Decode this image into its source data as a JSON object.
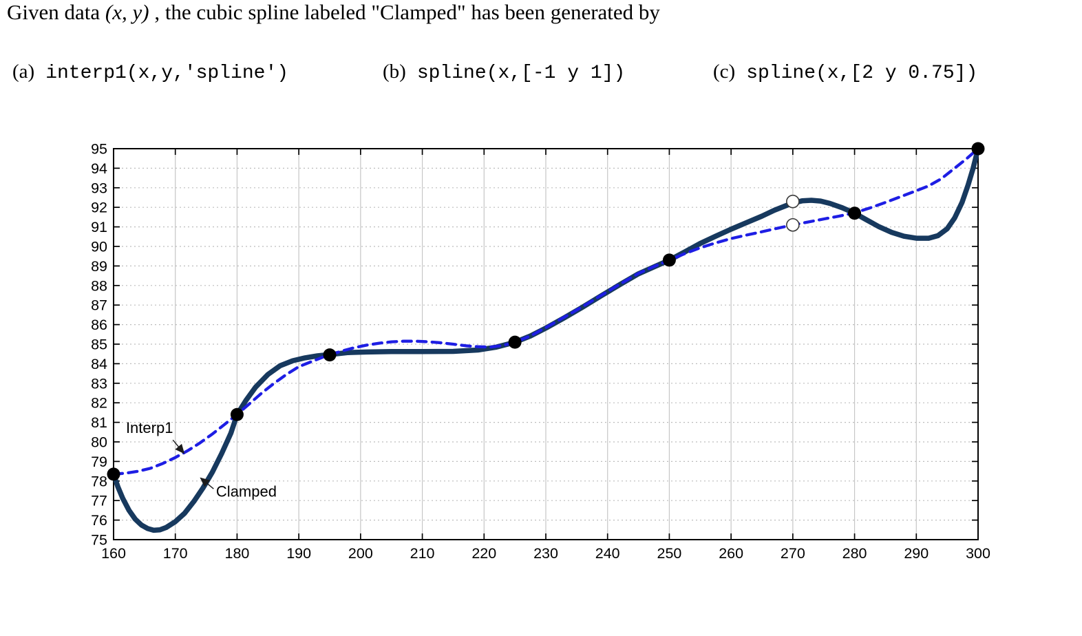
{
  "question": {
    "prefix": "Given data ",
    "math": "(x, y)",
    "suffix": " , the cubic spline labeled \"Clamped\" has been generated by"
  },
  "options": [
    {
      "label": "(a)",
      "code": "interp1(x,y,'spline')"
    },
    {
      "label": "(b)",
      "code": "spline(x,[-1 y 1])"
    },
    {
      "label": "(c)",
      "code": "spline(x,[2 y 0.75])"
    }
  ],
  "chart_data": {
    "type": "line",
    "title": "",
    "xlabel": "",
    "ylabel": "",
    "xlim": [
      160,
      300
    ],
    "ylim": [
      75,
      95
    ],
    "xticks": [
      160,
      170,
      180,
      190,
      200,
      210,
      220,
      230,
      240,
      250,
      260,
      270,
      280,
      290,
      300
    ],
    "yticks": [
      75,
      76,
      77,
      78,
      79,
      80,
      81,
      82,
      83,
      84,
      85,
      86,
      87,
      88,
      89,
      90,
      91,
      92,
      93,
      94,
      95
    ],
    "grid": true,
    "legend_position": "inline-annotations",
    "knots": {
      "x": [
        160,
        180,
        195,
        225,
        250,
        280,
        300
      ],
      "y": [
        78.35,
        81.4,
        84.45,
        85.1,
        89.3,
        91.7,
        95.0
      ],
      "marker_color": "#000000",
      "marker_radius": 9.5
    },
    "open_markers": {
      "points": [
        [
          270,
          92.3
        ],
        [
          270,
          91.1
        ]
      ],
      "fill": "#ffffff",
      "stroke": "#3a3a3a",
      "radius": 9
    },
    "series": [
      {
        "name": "Clamped",
        "style": "solid",
        "color": "#17395e",
        "width": 7.5,
        "points": [
          [
            160,
            78.35
          ],
          [
            160.7,
            77.7
          ],
          [
            161.5,
            77.1
          ],
          [
            162.5,
            76.5
          ],
          [
            163.5,
            76.05
          ],
          [
            164.5,
            75.75
          ],
          [
            165.5,
            75.57
          ],
          [
            166.5,
            75.48
          ],
          [
            167.5,
            75.5
          ],
          [
            168.5,
            75.62
          ],
          [
            170,
            75.92
          ],
          [
            171.5,
            76.35
          ],
          [
            173,
            76.95
          ],
          [
            174.5,
            77.65
          ],
          [
            176,
            78.45
          ],
          [
            177.5,
            79.4
          ],
          [
            179,
            80.45
          ],
          [
            180,
            81.4
          ],
          [
            181.5,
            82.15
          ],
          [
            183,
            82.8
          ],
          [
            185,
            83.45
          ],
          [
            187,
            83.9
          ],
          [
            189,
            84.15
          ],
          [
            191,
            84.3
          ],
          [
            193,
            84.4
          ],
          [
            195,
            84.47
          ],
          [
            198,
            84.57
          ],
          [
            201,
            84.6
          ],
          [
            205,
            84.62
          ],
          [
            210,
            84.62
          ],
          [
            215,
            84.63
          ],
          [
            219,
            84.7
          ],
          [
            222,
            84.85
          ],
          [
            225,
            85.1
          ],
          [
            227.5,
            85.42
          ],
          [
            230,
            85.82
          ],
          [
            233,
            86.35
          ],
          [
            236,
            86.9
          ],
          [
            239,
            87.48
          ],
          [
            242,
            88.05
          ],
          [
            245,
            88.6
          ],
          [
            247.5,
            88.95
          ],
          [
            250,
            89.3
          ],
          [
            252.5,
            89.72
          ],
          [
            255,
            90.15
          ],
          [
            257.5,
            90.52
          ],
          [
            260,
            90.88
          ],
          [
            262.5,
            91.22
          ],
          [
            265,
            91.55
          ],
          [
            267,
            91.85
          ],
          [
            269,
            92.1
          ],
          [
            270,
            92.22
          ],
          [
            271.5,
            92.33
          ],
          [
            273,
            92.36
          ],
          [
            274.5,
            92.32
          ],
          [
            276,
            92.2
          ],
          [
            278,
            91.98
          ],
          [
            280,
            91.7
          ],
          [
            282,
            91.35
          ],
          [
            284,
            91.0
          ],
          [
            286,
            90.72
          ],
          [
            288,
            90.52
          ],
          [
            290,
            90.42
          ],
          [
            292,
            90.42
          ],
          [
            293.5,
            90.55
          ],
          [
            295,
            90.9
          ],
          [
            296.2,
            91.45
          ],
          [
            297.4,
            92.25
          ],
          [
            298.4,
            93.15
          ],
          [
            299.2,
            94.0
          ],
          [
            300,
            95.0
          ]
        ]
      },
      {
        "name": "Interp1",
        "style": "dashed",
        "color": "#1e1ee4",
        "width": 4.3,
        "points": [
          [
            160,
            78.35
          ],
          [
            162,
            78.4
          ],
          [
            164,
            78.5
          ],
          [
            166,
            78.65
          ],
          [
            168,
            78.9
          ],
          [
            170,
            79.2
          ],
          [
            172,
            79.55
          ],
          [
            174,
            79.95
          ],
          [
            176,
            80.4
          ],
          [
            178,
            80.9
          ],
          [
            180,
            81.4
          ],
          [
            182,
            81.95
          ],
          [
            184,
            82.5
          ],
          [
            186,
            83.0
          ],
          [
            188,
            83.45
          ],
          [
            190,
            83.85
          ],
          [
            192,
            84.1
          ],
          [
            194,
            84.35
          ],
          [
            195,
            84.45
          ],
          [
            197,
            84.65
          ],
          [
            199,
            84.82
          ],
          [
            201,
            84.95
          ],
          [
            203,
            85.05
          ],
          [
            205,
            85.12
          ],
          [
            207,
            85.15
          ],
          [
            209,
            85.15
          ],
          [
            211,
            85.12
          ],
          [
            213,
            85.07
          ],
          [
            215,
            85.0
          ],
          [
            217,
            84.92
          ],
          [
            219,
            84.87
          ],
          [
            221,
            84.85
          ],
          [
            223,
            84.93
          ],
          [
            225,
            85.1
          ],
          [
            227.5,
            85.42
          ],
          [
            230,
            85.85
          ],
          [
            233,
            86.38
          ],
          [
            236,
            86.93
          ],
          [
            239,
            87.5
          ],
          [
            242,
            88.07
          ],
          [
            245,
            88.62
          ],
          [
            247.5,
            88.97
          ],
          [
            250,
            89.3
          ],
          [
            252.5,
            89.63
          ],
          [
            255,
            89.93
          ],
          [
            257.5,
            90.18
          ],
          [
            260,
            90.4
          ],
          [
            262.5,
            90.58
          ],
          [
            265,
            90.75
          ],
          [
            267.5,
            90.93
          ],
          [
            270,
            91.1
          ],
          [
            272.5,
            91.25
          ],
          [
            275,
            91.4
          ],
          [
            277.5,
            91.55
          ],
          [
            280,
            91.72
          ],
          [
            282.5,
            91.97
          ],
          [
            285,
            92.25
          ],
          [
            287.5,
            92.55
          ],
          [
            290,
            92.85
          ],
          [
            292,
            93.1
          ],
          [
            294,
            93.45
          ],
          [
            296,
            93.95
          ],
          [
            298,
            94.45
          ],
          [
            300,
            95.0
          ]
        ]
      }
    ],
    "annotations": [
      {
        "label": "Interp1",
        "text_at": [
          162.0,
          80.7
        ],
        "arrow_from": [
          169.6,
          80.1
        ],
        "arrow_to": [
          171.4,
          79.42
        ]
      },
      {
        "label": "Clamped",
        "text_at": [
          176.6,
          77.45
        ],
        "arrow_from": [
          176.2,
          77.6
        ],
        "arrow_to": [
          174.1,
          78.15
        ]
      }
    ],
    "axis_colors": {
      "box": "#000000",
      "grid_v": "#c6c6c6",
      "grid_h": "#bcbcbc",
      "tick_label": "#000000"
    }
  }
}
